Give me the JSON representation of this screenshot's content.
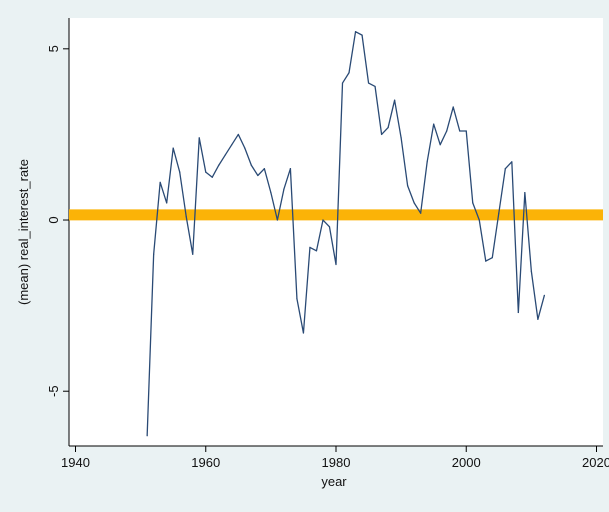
{
  "chart_data": {
    "type": "line",
    "title": "",
    "xlabel": "year",
    "ylabel": "(mean) real_interest_rate",
    "xlim": [
      1939,
      2021
    ],
    "ylim": [
      -6.6,
      5.9
    ],
    "xticks": [
      1940,
      1960,
      1980,
      2000,
      2020
    ],
    "yticks": [
      -5,
      0,
      5
    ],
    "grid": false,
    "legend": "none",
    "series": [
      {
        "points": [
          [
            1951,
            -6.3
          ],
          [
            1952,
            -1.0
          ],
          [
            1953,
            1.1
          ],
          [
            1954,
            0.5
          ],
          [
            1955,
            2.1
          ],
          [
            1956,
            1.4
          ],
          [
            1957,
            0.1
          ],
          [
            1958,
            -1.0
          ],
          [
            1959,
            2.4
          ],
          [
            1960,
            1.4
          ],
          [
            1961,
            1.25
          ],
          [
            1962,
            1.6
          ],
          [
            1963,
            1.9
          ],
          [
            1964,
            2.2
          ],
          [
            1965,
            2.5
          ],
          [
            1966,
            2.1
          ],
          [
            1967,
            1.6
          ],
          [
            1968,
            1.3
          ],
          [
            1969,
            1.5
          ],
          [
            1970,
            0.8
          ],
          [
            1971,
            0.0
          ],
          [
            1972,
            0.9
          ],
          [
            1973,
            1.5
          ],
          [
            1974,
            -2.3
          ],
          [
            1975,
            -3.3
          ],
          [
            1976,
            -0.8
          ],
          [
            1977,
            -0.9
          ],
          [
            1978,
            0.0
          ],
          [
            1979,
            -0.2
          ],
          [
            1980,
            -1.3
          ],
          [
            1981,
            4.0
          ],
          [
            1982,
            4.3
          ],
          [
            1983,
            5.5
          ],
          [
            1984,
            5.4
          ],
          [
            1985,
            4.0
          ],
          [
            1986,
            3.9
          ],
          [
            1987,
            2.5
          ],
          [
            1988,
            2.7
          ],
          [
            1989,
            3.5
          ],
          [
            1990,
            2.4
          ],
          [
            1991,
            1.0
          ],
          [
            1992,
            0.5
          ],
          [
            1993,
            0.2
          ],
          [
            1994,
            1.7
          ],
          [
            1995,
            2.8
          ],
          [
            1996,
            2.2
          ],
          [
            1997,
            2.6
          ],
          [
            1998,
            3.3
          ],
          [
            1999,
            2.6
          ],
          [
            2000,
            2.6
          ],
          [
            2001,
            0.5
          ],
          [
            2002,
            0.0
          ],
          [
            2003,
            -1.2
          ],
          [
            2004,
            -1.1
          ],
          [
            2005,
            0.2
          ],
          [
            2006,
            1.5
          ],
          [
            2007,
            1.7
          ],
          [
            2008,
            -2.7
          ],
          [
            2009,
            0.8
          ],
          [
            2010,
            -1.5
          ],
          [
            2011,
            -2.9
          ],
          [
            2012,
            -2.2
          ]
        ]
      }
    ],
    "reference_line": {
      "y": 0.15,
      "color": "#fbb307"
    },
    "line_color": "#2a4a75"
  }
}
